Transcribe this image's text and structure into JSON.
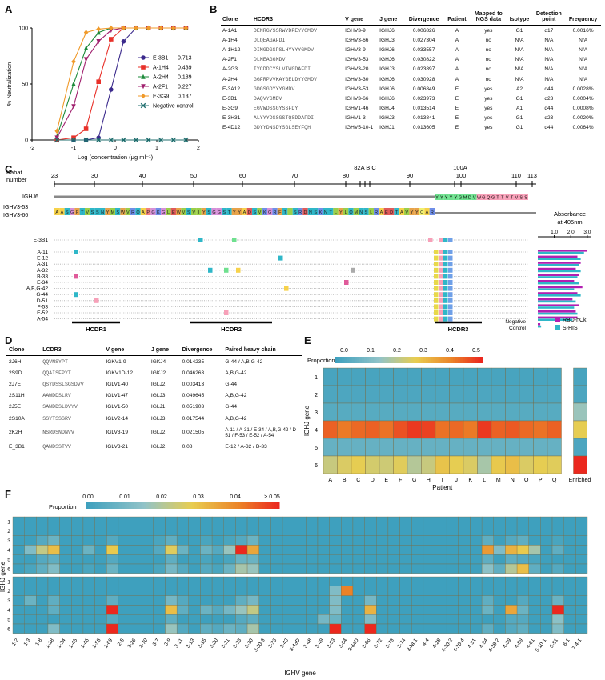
{
  "panels": {
    "a": "A",
    "b": "B",
    "c": "C",
    "d": "D",
    "e": "E",
    "f": "F"
  },
  "panelA": {
    "ylabel": "% Neutralization",
    "xlabel": "Log (concentration (μg ml⁻¹)",
    "legend": [
      {
        "name": "E-3B1",
        "value": "0.713",
        "color": "#3b2a8c",
        "marker": "circle"
      },
      {
        "name": "A-1H4",
        "value": "0.439",
        "color": "#e8312a",
        "marker": "square"
      },
      {
        "name": "A-2H4",
        "value": "0.189",
        "color": "#1c8a3a",
        "marker": "triangle"
      },
      {
        "name": "A-2F1",
        "value": "0.227",
        "color": "#a0206e",
        "marker": "triangle-down"
      },
      {
        "name": "E-3G9",
        "value": "0.137",
        "color": "#f09a2a",
        "marker": "diamond"
      },
      {
        "name": "Negative control",
        "value": "",
        "color": "#1f6e6e",
        "marker": "x"
      }
    ]
  },
  "chart_data": {
    "type": "line",
    "xlabel": "Log (concentration (μg ml⁻¹)",
    "ylabel": "% Neutralization",
    "xlim": [
      -2,
      2
    ],
    "ylim": [
      0,
      100
    ],
    "xticks": [
      "-2",
      "-1",
      "0",
      "1",
      "2"
    ],
    "yticks": [
      "0",
      "50",
      "100"
    ],
    "x": [
      -1.4,
      -1.0,
      -0.7,
      -0.4,
      -0.1,
      0.2,
      0.5,
      0.8,
      1.1,
      1.4,
      1.7
    ],
    "series": [
      {
        "name": "E-3B1",
        "ic50": 0.713,
        "values": [
          0,
          0,
          0,
          2,
          45,
          88,
          100,
          100,
          100,
          100,
          100
        ]
      },
      {
        "name": "A-1H4",
        "ic50": 0.439,
        "values": [
          0,
          2,
          10,
          52,
          90,
          100,
          100,
          100,
          100,
          100,
          100
        ]
      },
      {
        "name": "A-2H4",
        "ic50": 0.189,
        "values": [
          3,
          50,
          82,
          96,
          100,
          100,
          100,
          100,
          100,
          100,
          100
        ]
      },
      {
        "name": "A-2F1",
        "ic50": 0.227,
        "values": [
          2,
          30,
          72,
          88,
          98,
          100,
          100,
          100,
          100,
          100,
          100
        ]
      },
      {
        "name": "E-3G9",
        "ic50": 0.137,
        "values": [
          8,
          70,
          96,
          99,
          100,
          100,
          100,
          100,
          100,
          100,
          100
        ]
      },
      {
        "name": "Negative control",
        "values": [
          0,
          0,
          0,
          0,
          0,
          0,
          0,
          0,
          0,
          0,
          0
        ]
      }
    ]
  },
  "tableB": {
    "headers": [
      "Clone",
      "HCDR3",
      "V gene",
      "J gene",
      "Divergence",
      "Patient",
      "Mapped to NGS data",
      "Isotype",
      "Detection point",
      "Frequency"
    ],
    "rows": [
      [
        "A-1A1",
        "DENRGYSSRWYDPEYYGMDV",
        "IGHV3-9",
        "IGHJ6",
        "0.006826",
        "A",
        "yes",
        "G1",
        "d17",
        "0.0016%"
      ],
      [
        "A-1H4",
        "DLQEAGAFDI",
        "IGHV3-66",
        "IGHJ3",
        "0.027304",
        "A",
        "no",
        "N/A",
        "N/A",
        "N/A"
      ],
      [
        "A-1H12",
        "DIMGDGSPSLHYYYYGMDV",
        "IGHV3-9",
        "IGHJ6",
        "0.033557",
        "A",
        "no",
        "N/A",
        "N/A",
        "N/A"
      ],
      [
        "A-2F1",
        "DLMEAGGMDV",
        "IGHV3-53",
        "IGHJ6",
        "0.030822",
        "A",
        "no",
        "N/A",
        "N/A",
        "N/A"
      ],
      [
        "A-2G3",
        "IYCDDCYSLVIWGDAFDI",
        "IGHV3-20",
        "IGHJ3",
        "0.023897",
        "A",
        "no",
        "N/A",
        "N/A",
        "N/A"
      ],
      [
        "A-2H4",
        "GGFRPVVKAYGELDYYGMDV",
        "IGHV3-30",
        "IGHJ6",
        "0.030928",
        "A",
        "no",
        "N/A",
        "N/A",
        "N/A"
      ],
      [
        "E-3A12",
        "GDGSGDYYYGMDV",
        "IGHV3-53",
        "IGHJ6",
        "0.006849",
        "E",
        "yes",
        "A2",
        "d44",
        "0.0028%"
      ],
      [
        "E-3B1",
        "DAQVYGMDV",
        "IGHV3-66",
        "IGHJ6",
        "0.023973",
        "E",
        "yes",
        "G1",
        "d23",
        "0.0004%"
      ],
      [
        "E-3G9",
        "EGVWDSSGYSSFDY",
        "IGHV1-46",
        "IGHJ4",
        "0.013514",
        "E",
        "yes",
        "A1",
        "d44",
        "0.0008%"
      ],
      [
        "E-3H31",
        "ALYYYDSSGSTQSDDAFDI",
        "IGHV1-3",
        "IGHJ3",
        "0.013841",
        "E",
        "yes",
        "G1",
        "d23",
        "0.0020%"
      ],
      [
        "E-4D12",
        "GDYYDNSDYSGLSEYFQH",
        "IGHV5-10-1",
        "IGHJ1",
        "0.013605",
        "E",
        "yes",
        "G1",
        "d44",
        "0.0064%"
      ]
    ]
  },
  "panelC": {
    "kabat_label_1": "Kabat",
    "kabat_label_2": "number",
    "ticks": [
      "23",
      "30",
      "40",
      "50",
      "60",
      "70",
      "80",
      "90",
      "100",
      "110",
      "113"
    ],
    "extra_ticks": [
      "82A B C",
      "100A"
    ],
    "germlines": [
      "IGHJ6",
      "IGHV3-53",
      "IGHV3-66"
    ],
    "igj6_seq": "YYYYYGMDVWGQGTTVTVSS",
    "v_seq": "AASGFTVSSNYMSWVRQAPGKGLEWVSVIYSGGSTYYADSVKGRFTISRDNSKNTLYLQMNSLRAEDTAVYYCAR",
    "clones": [
      "E-3B1",
      "A-11",
      "E-12",
      "A-31",
      "A-32",
      "B-33",
      "E-34",
      "A,B,G-42",
      "G-44",
      "D-51",
      "F-53",
      "E-52",
      "A-54"
    ],
    "regions": [
      "HCDR1",
      "HCDR2",
      "HCDR3"
    ],
    "absorbance_title_1": "Absorbance",
    "absorbance_title_2": "at 405nm",
    "abs_ticks": [
      "1.0",
      "2.0",
      "3.0"
    ],
    "legend": [
      {
        "name": "RBD-hCk",
        "color": "#b21fb2"
      },
      {
        "name": "S-HIS",
        "color": "#2fb7c8"
      }
    ],
    "negative_control": "Negative Control",
    "rbd": [
      3.0,
      2.4,
      2.6,
      2.3,
      2.5,
      2.2,
      2.7,
      2.4,
      2.1,
      2.5,
      2.3,
      2.4,
      0.15
    ],
    "shis": [
      2.8,
      2.6,
      2.5,
      2.6,
      2.4,
      2.5,
      2.2,
      2.6,
      2.3,
      2.2,
      2.4,
      2.1,
      0.2
    ]
  },
  "tableD": {
    "headers": [
      "Clone",
      "LCDR3",
      "V gene",
      "J gene",
      "Divergence",
      "Paired heavy chain"
    ],
    "rows": [
      [
        "2J6H",
        "QQVNSYPT",
        "IGKV1-9",
        "IGKJ4",
        "0.014235",
        "G-44 / A,B,G-42"
      ],
      [
        "2S9D",
        "QQAISFPYT",
        "IGKV1D-12",
        "IGKJ2",
        "0.046263",
        "A,B,G-42"
      ],
      [
        "2J7E",
        "QSYDSSLSGSDVV",
        "IGLV1-40",
        "IGLJ2",
        "0.003413",
        "G-44"
      ],
      [
        "2S11H",
        "AAWDDSLRV",
        "IGLV1-47",
        "IGLJ3",
        "0.049645",
        "A,B,G-42"
      ],
      [
        "2J5E",
        "SAWDDSLDVYV",
        "IGLV1-50",
        "IGLJ1",
        "0.051903",
        "G-44"
      ],
      [
        "2S10A",
        "SSYTSSSRV",
        "IGLV2-14",
        "IGLJ3",
        "0.017544",
        "A,B,G-42"
      ],
      [
        "2K2H",
        "NSRDSNDNVV",
        "IGLV3-19",
        "IGLJ2",
        "0.021505",
        "A-11 / A-31 / E-34 / A,B,G-42 / D-51 / F-53 / E-52 / A-54"
      ],
      [
        "E_3B1",
        "QAWDSSTVV",
        "IGLV3-21",
        "IGLJ2",
        "0.08",
        "E-12 / A-32 / B-33"
      ]
    ]
  },
  "panelE": {
    "proportion_label": "Proportion",
    "scale_ticks": [
      "0.0",
      "0.1",
      "0.2",
      "0.3",
      "0.4",
      "0.5"
    ],
    "ylabel": "IGHJ gene",
    "xlabel": "Patient",
    "rows": [
      "1",
      "2",
      "3",
      "4",
      "5",
      "6"
    ],
    "cols": [
      "A",
      "B",
      "C",
      "D",
      "E",
      "F",
      "G",
      "H",
      "I",
      "J",
      "K",
      "L",
      "M",
      "N",
      "O",
      "P",
      "Q"
    ],
    "enriched_label": "Enriched",
    "values": [
      [
        0.02,
        0.02,
        0.02,
        0.02,
        0.02,
        0.02,
        0.02,
        0.02,
        0.02,
        0.02,
        0.02,
        0.02,
        0.02,
        0.02,
        0.02,
        0.02,
        0.02
      ],
      [
        0.03,
        0.03,
        0.03,
        0.03,
        0.03,
        0.03,
        0.03,
        0.03,
        0.03,
        0.03,
        0.03,
        0.03,
        0.03,
        0.03,
        0.03,
        0.03,
        0.03
      ],
      [
        0.05,
        0.05,
        0.05,
        0.05,
        0.05,
        0.05,
        0.05,
        0.05,
        0.05,
        0.05,
        0.05,
        0.05,
        0.05,
        0.05,
        0.05,
        0.05,
        0.05
      ],
      [
        0.48,
        0.45,
        0.47,
        0.48,
        0.46,
        0.5,
        0.53,
        0.52,
        0.46,
        0.47,
        0.45,
        0.53,
        0.48,
        0.49,
        0.47,
        0.46,
        0.48
      ],
      [
        0.08,
        0.08,
        0.08,
        0.08,
        0.08,
        0.08,
        0.08,
        0.08,
        0.08,
        0.08,
        0.08,
        0.08,
        0.08,
        0.08,
        0.08,
        0.08,
        0.08
      ],
      [
        0.25,
        0.28,
        0.3,
        0.27,
        0.26,
        0.29,
        0.22,
        0.25,
        0.32,
        0.3,
        0.28,
        0.2,
        0.31,
        0.33,
        0.28,
        0.3,
        0.29
      ]
    ],
    "enriched": [
      0.02,
      0.03,
      0.18,
      0.3,
      0.03,
      0.55
    ]
  },
  "panelF": {
    "proportion_label": "Proportion",
    "scale_ticks": [
      "0.00",
      "0.01",
      "0.02",
      "0.03",
      "0.04",
      "> 0.05"
    ],
    "ylabel": "IGHJ gene",
    "xlabel": "IGHV gene",
    "rows": [
      "1",
      "2",
      "3",
      "4",
      "5",
      "6"
    ],
    "cols": [
      "1-2",
      "1-3",
      "1-8",
      "1-18",
      "1-24",
      "1-45",
      "1-46",
      "1-58",
      "1-69",
      "2-5",
      "2-26",
      "2-70",
      "3-7",
      "3-9",
      "3-11",
      "3-13",
      "3-15",
      "3-20",
      "3-21",
      "3-23",
      "3-30",
      "3-30-3",
      "3-33",
      "3-43",
      "3-43D",
      "3-48",
      "3-49",
      "3-53",
      "3-64",
      "3-64D",
      "3-66",
      "3-72",
      "3-73",
      "3-74",
      "3-NL1",
      "4-4",
      "4-28",
      "4-30-2",
      "4-30-4",
      "4-31",
      "4-34",
      "4-38-2",
      "4-39",
      "4-59",
      "4-61",
      "5-10-1",
      "5-51",
      "6-1",
      "7-4-1"
    ],
    "top": [
      [
        0,
        0,
        0,
        0,
        0,
        0,
        0,
        0,
        0,
        0,
        0,
        0,
        0,
        0,
        0,
        0,
        0,
        0,
        0,
        0,
        0,
        0,
        0,
        0,
        0,
        0,
        0,
        0,
        0,
        0,
        0,
        0,
        0,
        0,
        0,
        0,
        0,
        0,
        0,
        0,
        0,
        0,
        0,
        0,
        0,
        0,
        0,
        0,
        0
      ],
      [
        0,
        0,
        0,
        0,
        0,
        0,
        0,
        0,
        0,
        0,
        0,
        0,
        0,
        0,
        0,
        0,
        0,
        0,
        0,
        0,
        0,
        0,
        0,
        0,
        0,
        0,
        0,
        0,
        0,
        0,
        0,
        0,
        0,
        0,
        0,
        0,
        0,
        0,
        0,
        0,
        0,
        0,
        0,
        0,
        0,
        0,
        0,
        0,
        0
      ],
      [
        0,
        0,
        0.004,
        0.008,
        0,
        0,
        0,
        0,
        0.004,
        0,
        0,
        0,
        0.002,
        0.006,
        0,
        0,
        0.002,
        0,
        0.002,
        0.004,
        0.008,
        0,
        0,
        0,
        0,
        0,
        0,
        0,
        0,
        0,
        0,
        0,
        0,
        0,
        0,
        0,
        0,
        0,
        0,
        0,
        0.006,
        0,
        0.004,
        0.006,
        0,
        0,
        0.002,
        0,
        0
      ],
      [
        0,
        0.012,
        0.022,
        0.03,
        0,
        0,
        0.008,
        0,
        0.028,
        0,
        0,
        0,
        0.004,
        0.026,
        0.008,
        0,
        0.008,
        0.004,
        0.016,
        0.06,
        0.034,
        0,
        0,
        0,
        0,
        0,
        0,
        0,
        0,
        0,
        0,
        0,
        0,
        0,
        0,
        0,
        0,
        0,
        0,
        0,
        0.036,
        0.012,
        0.032,
        0.028,
        0.018,
        0,
        0.006,
        0,
        0
      ],
      [
        0,
        0,
        0.004,
        0.006,
        0,
        0,
        0,
        0,
        0.004,
        0,
        0,
        0,
        0,
        0.006,
        0,
        0,
        0.002,
        0,
        0.002,
        0.008,
        0.008,
        0,
        0,
        0,
        0,
        0,
        0,
        0,
        0,
        0,
        0,
        0,
        0,
        0,
        0,
        0,
        0,
        0,
        0,
        0,
        0.006,
        0,
        0.006,
        0.004,
        0.002,
        0,
        0,
        0,
        0
      ],
      [
        0,
        0.002,
        0.006,
        0.012,
        0,
        0,
        0.002,
        0,
        0.008,
        0,
        0,
        0,
        0.002,
        0.01,
        0.004,
        0,
        0.004,
        0.002,
        0.008,
        0.018,
        0.016,
        0,
        0,
        0,
        0,
        0,
        0,
        0,
        0,
        0,
        0,
        0,
        0,
        0,
        0,
        0,
        0,
        0,
        0,
        0,
        0.014,
        0.006,
        0.02,
        0.03,
        0.006,
        0,
        0.004,
        0,
        0
      ]
    ],
    "bottom": [
      [
        0,
        0,
        0,
        0,
        0,
        0,
        0,
        0,
        0,
        0,
        0,
        0,
        0,
        0,
        0,
        0,
        0,
        0,
        0,
        0,
        0,
        0,
        0,
        0,
        0,
        0,
        0,
        0,
        0,
        0,
        0,
        0,
        0,
        0,
        0,
        0,
        0,
        0,
        0,
        0,
        0,
        0,
        0,
        0,
        0,
        0,
        0,
        0,
        0
      ],
      [
        0,
        0,
        0,
        0,
        0,
        0,
        0,
        0,
        0,
        0,
        0,
        0,
        0,
        0,
        0,
        0,
        0,
        0,
        0,
        0,
        0,
        0,
        0,
        0,
        0,
        0,
        0,
        0.012,
        0.04,
        0,
        0,
        0,
        0,
        0,
        0,
        0,
        0,
        0,
        0,
        0,
        0,
        0,
        0,
        0,
        0,
        0,
        0,
        0,
        0
      ],
      [
        0,
        0.008,
        0,
        0.006,
        0,
        0,
        0,
        0,
        0.006,
        0,
        0,
        0,
        0,
        0.01,
        0.004,
        0,
        0,
        0,
        0,
        0.006,
        0.01,
        0,
        0,
        0,
        0,
        0,
        0,
        0.012,
        0,
        0,
        0.01,
        0,
        0,
        0,
        0,
        0,
        0,
        0,
        0,
        0,
        0.006,
        0,
        0,
        0.004,
        0,
        0,
        0.008,
        0,
        0
      ],
      [
        0,
        0,
        0,
        0.006,
        0,
        0,
        0,
        0,
        0.06,
        0,
        0,
        0,
        0,
        0.03,
        0.006,
        0,
        0.008,
        0.004,
        0.01,
        0.016,
        0.022,
        0,
        0,
        0,
        0,
        0,
        0,
        0.012,
        0,
        0,
        0.032,
        0,
        0,
        0,
        0,
        0,
        0,
        0,
        0,
        0,
        0.008,
        0,
        0.034,
        0.008,
        0,
        0,
        0.06,
        0,
        0
      ],
      [
        0,
        0,
        0,
        0,
        0,
        0,
        0,
        0,
        0.004,
        0,
        0,
        0,
        0,
        0.006,
        0,
        0,
        0,
        0,
        0,
        0.004,
        0.006,
        0,
        0,
        0,
        0,
        0,
        0.01,
        0.008,
        0,
        0,
        0.012,
        0,
        0,
        0,
        0,
        0,
        0,
        0,
        0,
        0,
        0,
        0,
        0.004,
        0.004,
        0,
        0,
        0.014,
        0,
        0
      ],
      [
        0,
        0,
        0,
        0.012,
        0,
        0,
        0,
        0,
        0.05,
        0,
        0,
        0,
        0,
        0.016,
        0.004,
        0,
        0.006,
        0.004,
        0.008,
        0.006,
        0.018,
        0,
        0,
        0,
        0,
        0,
        0,
        0.06,
        0,
        0,
        0.06,
        0,
        0,
        0,
        0,
        0,
        0,
        0,
        0,
        0,
        0.006,
        0,
        0.004,
        0.006,
        0,
        0,
        0.012,
        0,
        0
      ]
    ]
  }
}
